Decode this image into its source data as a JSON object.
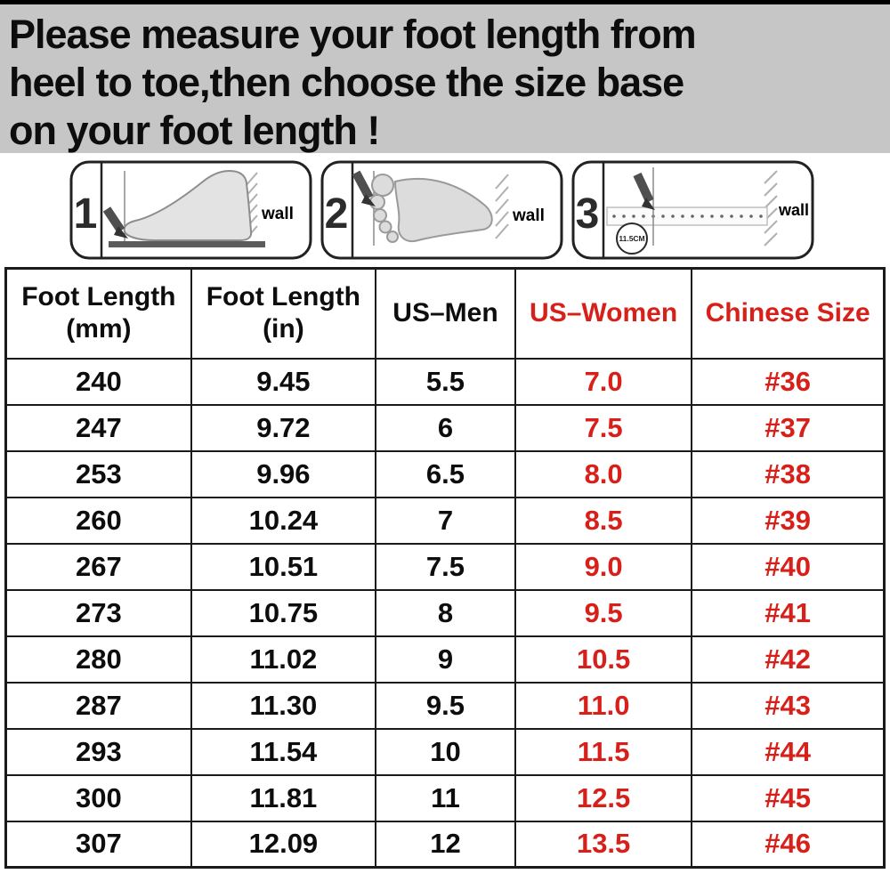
{
  "colors": {
    "banner_bg": "#c6c6c6",
    "red": "#d8201a",
    "black": "#0d0d0d",
    "border": "#1a1a1a"
  },
  "banner": {
    "lines": [
      "Please measure your foot length from",
      "heel to toe,then choose the size base",
      "on your foot length !"
    ]
  },
  "instructions": {
    "steps": [
      {
        "number": "1",
        "wall_label": "wall"
      },
      {
        "number": "2",
        "wall_label": "wall"
      },
      {
        "number": "3",
        "wall_label": "wall",
        "ruler_circle_label": "11.5CM"
      }
    ]
  },
  "size_table": {
    "columns": [
      {
        "label": "Foot Length\n(mm)",
        "color": "black"
      },
      {
        "label": "Foot Length\n(in)",
        "color": "black"
      },
      {
        "label": "US–Men",
        "color": "black"
      },
      {
        "label": "US–Women",
        "color": "red"
      },
      {
        "label": "Chinese Size",
        "color": "red"
      }
    ],
    "column_text_colors": [
      "black",
      "black",
      "black",
      "red",
      "red"
    ],
    "rows": [
      [
        "240",
        "9.45",
        "5.5",
        "7.0",
        "#36"
      ],
      [
        "247",
        "9.72",
        "6",
        "7.5",
        "#37"
      ],
      [
        "253",
        "9.96",
        "6.5",
        "8.0",
        "#38"
      ],
      [
        "260",
        "10.24",
        "7",
        "8.5",
        "#39"
      ],
      [
        "267",
        "10.51",
        "7.5",
        "9.0",
        "#40"
      ],
      [
        "273",
        "10.75",
        "8",
        "9.5",
        "#41"
      ],
      [
        "280",
        "11.02",
        "9",
        "10.5",
        "#42"
      ],
      [
        "287",
        "11.30",
        "9.5",
        "11.0",
        "#43"
      ],
      [
        "293",
        "11.54",
        "10",
        "11.5",
        "#44"
      ],
      [
        "300",
        "11.81",
        "11",
        "12.5",
        "#45"
      ],
      [
        "307",
        "12.09",
        "12",
        "13.5",
        "#46"
      ]
    ]
  }
}
